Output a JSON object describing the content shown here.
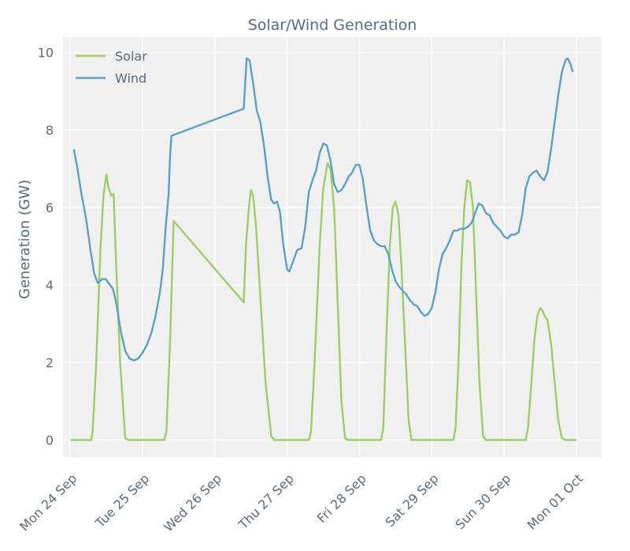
{
  "chart_data": {
    "type": "line",
    "title": "Solar/Wind Generation",
    "xlabel": "",
    "ylabel": "Generation (GW)",
    "ylim": [
      -0.45,
      10.4
    ],
    "xlim": [
      -0.1,
      7.35
    ],
    "yticks": [
      0,
      2,
      4,
      6,
      8,
      10
    ],
    "xticks": [
      {
        "pos": 0,
        "label": "Mon 24 Sep"
      },
      {
        "pos": 1,
        "label": "Tue 25 Sep"
      },
      {
        "pos": 2,
        "label": "Wed 26 Sep"
      },
      {
        "pos": 3,
        "label": "Thu 27 Sep"
      },
      {
        "pos": 4,
        "label": "Fri 28 Sep"
      },
      {
        "pos": 5,
        "label": "Sat 29 Sep"
      },
      {
        "pos": 6,
        "label": "Sun 30 Sep"
      },
      {
        "pos": 7,
        "label": "Mon 01 Oct"
      }
    ],
    "grid": true,
    "legend_position": "top-left",
    "series": [
      {
        "name": "Solar",
        "color": "#9ccf61",
        "points": [
          [
            0,
            0
          ],
          [
            0.29,
            0
          ],
          [
            0.31,
            0.2
          ],
          [
            0.36,
            2.0
          ],
          [
            0.42,
            5.0
          ],
          [
            0.46,
            6.3
          ],
          [
            0.5,
            6.85
          ],
          [
            0.53,
            6.5
          ],
          [
            0.57,
            6.3
          ],
          [
            0.6,
            6.35
          ],
          [
            0.63,
            4.8
          ],
          [
            0.69,
            2.0
          ],
          [
            0.76,
            0.05
          ],
          [
            0.8,
            0
          ],
          [
            1.3,
            0
          ],
          [
            1.33,
            0.2
          ],
          [
            1.38,
            2.5
          ],
          [
            1.43,
            5.65
          ],
          [
            2.4,
            3.55
          ],
          [
            2.43,
            5.0
          ],
          [
            2.47,
            6.0
          ],
          [
            2.5,
            6.45
          ],
          [
            2.53,
            6.3
          ],
          [
            2.57,
            5.5
          ],
          [
            2.62,
            4.0
          ],
          [
            2.7,
            1.5
          ],
          [
            2.78,
            0.1
          ],
          [
            2.82,
            0
          ],
          [
            3.3,
            0
          ],
          [
            3.33,
            0.2
          ],
          [
            3.38,
            2.0
          ],
          [
            3.45,
            5.0
          ],
          [
            3.5,
            6.5
          ],
          [
            3.56,
            7.15
          ],
          [
            3.6,
            7.0
          ],
          [
            3.65,
            6.0
          ],
          [
            3.7,
            3.5
          ],
          [
            3.75,
            1.0
          ],
          [
            3.8,
            0.05
          ],
          [
            3.84,
            0
          ],
          [
            4.3,
            0
          ],
          [
            4.33,
            0.3
          ],
          [
            4.37,
            2.5
          ],
          [
            4.42,
            5.0
          ],
          [
            4.46,
            6.0
          ],
          [
            4.5,
            6.15
          ],
          [
            4.54,
            5.8
          ],
          [
            4.58,
            4.5
          ],
          [
            4.63,
            2.5
          ],
          [
            4.68,
            0.5
          ],
          [
            4.72,
            0
          ],
          [
            5.3,
            0
          ],
          [
            5.33,
            0.3
          ],
          [
            5.37,
            2.0
          ],
          [
            5.41,
            4.5
          ],
          [
            5.45,
            6.0
          ],
          [
            5.49,
            6.7
          ],
          [
            5.53,
            6.65
          ],
          [
            5.57,
            6.0
          ],
          [
            5.61,
            4.0
          ],
          [
            5.66,
            1.5
          ],
          [
            5.71,
            0.1
          ],
          [
            5.75,
            0
          ],
          [
            6.3,
            0
          ],
          [
            6.33,
            0.3
          ],
          [
            6.38,
            1.5
          ],
          [
            6.42,
            2.6
          ],
          [
            6.46,
            3.2
          ],
          [
            6.5,
            3.4
          ],
          [
            6.53,
            3.35
          ],
          [
            6.56,
            3.2
          ],
          [
            6.6,
            3.1
          ],
          [
            6.65,
            2.5
          ],
          [
            6.7,
            1.5
          ],
          [
            6.75,
            0.5
          ],
          [
            6.8,
            0.05
          ],
          [
            6.85,
            0
          ],
          [
            7.0,
            0
          ]
        ]
      },
      {
        "name": "Wind",
        "color": "#5aa2c4",
        "points": [
          [
            0.05,
            7.5
          ],
          [
            0.1,
            7.0
          ],
          [
            0.15,
            6.4
          ],
          [
            0.22,
            5.7
          ],
          [
            0.28,
            4.9
          ],
          [
            0.33,
            4.3
          ],
          [
            0.38,
            4.05
          ],
          [
            0.44,
            4.15
          ],
          [
            0.49,
            4.15
          ],
          [
            0.53,
            4.05
          ],
          [
            0.59,
            3.9
          ],
          [
            0.64,
            3.5
          ],
          [
            0.7,
            2.8
          ],
          [
            0.76,
            2.3
          ],
          [
            0.82,
            2.1
          ],
          [
            0.88,
            2.05
          ],
          [
            0.94,
            2.1
          ],
          [
            1.0,
            2.25
          ],
          [
            1.06,
            2.45
          ],
          [
            1.12,
            2.75
          ],
          [
            1.18,
            3.2
          ],
          [
            1.24,
            3.8
          ],
          [
            1.28,
            4.4
          ],
          [
            1.32,
            5.5
          ],
          [
            1.36,
            6.3
          ],
          [
            1.38,
            7.3
          ],
          [
            1.4,
            7.85
          ],
          [
            2.4,
            8.55
          ],
          [
            2.44,
            9.85
          ],
          [
            2.48,
            9.8
          ],
          [
            2.53,
            9.2
          ],
          [
            2.58,
            8.5
          ],
          [
            2.63,
            8.2
          ],
          [
            2.68,
            7.6
          ],
          [
            2.73,
            6.8
          ],
          [
            2.78,
            6.2
          ],
          [
            2.82,
            6.1
          ],
          [
            2.86,
            6.15
          ],
          [
            2.9,
            5.9
          ],
          [
            2.95,
            5.0
          ],
          [
            3.0,
            4.4
          ],
          [
            3.03,
            4.35
          ],
          [
            3.08,
            4.6
          ],
          [
            3.14,
            4.9
          ],
          [
            3.2,
            4.95
          ],
          [
            3.25,
            5.5
          ],
          [
            3.3,
            6.4
          ],
          [
            3.35,
            6.7
          ],
          [
            3.4,
            6.95
          ],
          [
            3.45,
            7.4
          ],
          [
            3.5,
            7.65
          ],
          [
            3.55,
            7.6
          ],
          [
            3.6,
            7.2
          ],
          [
            3.65,
            6.6
          ],
          [
            3.7,
            6.4
          ],
          [
            3.75,
            6.45
          ],
          [
            3.8,
            6.6
          ],
          [
            3.85,
            6.8
          ],
          [
            3.9,
            6.9
          ],
          [
            3.95,
            7.1
          ],
          [
            4.0,
            7.1
          ],
          [
            4.05,
            6.7
          ],
          [
            4.1,
            6.0
          ],
          [
            4.15,
            5.4
          ],
          [
            4.2,
            5.15
          ],
          [
            4.25,
            5.05
          ],
          [
            4.3,
            5.0
          ],
          [
            4.35,
            5.0
          ],
          [
            4.4,
            4.8
          ],
          [
            4.45,
            4.4
          ],
          [
            4.5,
            4.1
          ],
          [
            4.55,
            3.95
          ],
          [
            4.6,
            3.85
          ],
          [
            4.65,
            3.75
          ],
          [
            4.7,
            3.6
          ],
          [
            4.75,
            3.5
          ],
          [
            4.8,
            3.45
          ],
          [
            4.85,
            3.3
          ],
          [
            4.9,
            3.2
          ],
          [
            4.95,
            3.25
          ],
          [
            5.0,
            3.4
          ],
          [
            5.05,
            3.8
          ],
          [
            5.1,
            4.4
          ],
          [
            5.15,
            4.8
          ],
          [
            5.2,
            4.95
          ],
          [
            5.25,
            5.15
          ],
          [
            5.3,
            5.4
          ],
          [
            5.35,
            5.4
          ],
          [
            5.4,
            5.45
          ],
          [
            5.45,
            5.45
          ],
          [
            5.5,
            5.5
          ],
          [
            5.55,
            5.6
          ],
          [
            5.6,
            5.85
          ],
          [
            5.65,
            6.1
          ],
          [
            5.7,
            6.05
          ],
          [
            5.75,
            5.85
          ],
          [
            5.8,
            5.8
          ],
          [
            5.85,
            5.6
          ],
          [
            5.9,
            5.5
          ],
          [
            5.95,
            5.4
          ],
          [
            6.0,
            5.25
          ],
          [
            6.05,
            5.2
          ],
          [
            6.1,
            5.3
          ],
          [
            6.15,
            5.3
          ],
          [
            6.2,
            5.35
          ],
          [
            6.25,
            5.8
          ],
          [
            6.3,
            6.5
          ],
          [
            6.35,
            6.8
          ],
          [
            6.4,
            6.9
          ],
          [
            6.45,
            6.95
          ],
          [
            6.5,
            6.8
          ],
          [
            6.55,
            6.7
          ],
          [
            6.6,
            6.9
          ],
          [
            6.65,
            7.5
          ],
          [
            6.7,
            8.2
          ],
          [
            6.75,
            8.9
          ],
          [
            6.8,
            9.5
          ],
          [
            6.85,
            9.8
          ],
          [
            6.88,
            9.85
          ],
          [
            6.92,
            9.7
          ],
          [
            6.95,
            9.5
          ]
        ]
      }
    ]
  }
}
